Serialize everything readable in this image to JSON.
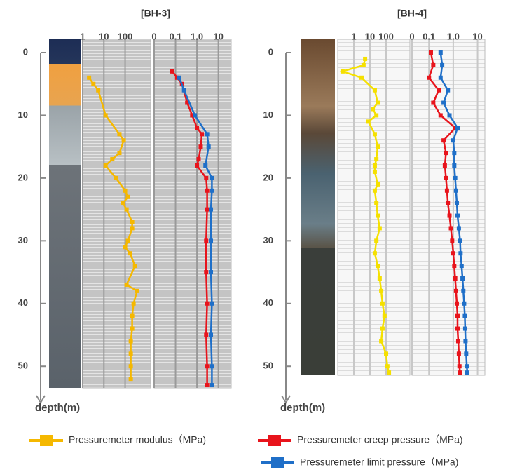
{
  "chart_data": [
    {
      "type": "line",
      "title": "[BH-3]",
      "y_label": "depth(m)",
      "ylim": [
        0,
        54
      ],
      "yticks": [
        0,
        10,
        20,
        30,
        40,
        50
      ],
      "yreverse": true,
      "xlim": [
        1,
        1600
      ],
      "xticks": [
        1,
        10,
        100
      ],
      "xlog": true,
      "x2lim": [
        0.01,
        40
      ],
      "x2ticks": [
        {
          "value": 0.01,
          "label": "0"
        },
        0.1,
        {
          "value": 1,
          "label": "1.0"
        },
        10
      ],
      "x2log": true,
      "grid": true,
      "series": [
        {
          "name": "Pressuremeter modulus（MPa)",
          "color": "#f5b800",
          "axis": "x",
          "depth": [
            4,
            5,
            6,
            10,
            13,
            14,
            16,
            17,
            18,
            20,
            22,
            23,
            24,
            25,
            27,
            28,
            30,
            31,
            32,
            34,
            37,
            38,
            40,
            42,
            44,
            46,
            48,
            50,
            52
          ],
          "values": [
            2,
            3.2,
            5.4,
            12,
            54,
            86,
            54,
            25,
            12,
            37,
            100,
            136,
            80,
            117,
            215,
            215,
            136,
            100,
            171,
            293,
            117,
            369,
            251,
            215,
            215,
            185,
            185,
            185,
            185
          ]
        },
        {
          "name": "Pressuremeter creep pressure（MPa)",
          "color": "#e8141c",
          "axis": "x2",
          "depth": [
            3,
            4,
            5,
            8,
            10,
            12,
            13,
            15,
            17,
            18,
            20,
            22,
            25,
            30,
            35,
            40,
            45,
            50,
            53
          ],
          "values": [
            0.07,
            0.12,
            0.2,
            0.35,
            0.6,
            1,
            1.7,
            1.5,
            1.2,
            1,
            2.7,
            3,
            3,
            2.7,
            2.7,
            3,
            2.7,
            3,
            3
          ]
        },
        {
          "name": "Pressuremeter limit pressure（MPa)",
          "color": "#1f6fc8",
          "axis": "x2",
          "depth": [
            4,
            6,
            10,
            13,
            15,
            18,
            20,
            22,
            25,
            30,
            35,
            40,
            45,
            50,
            53
          ],
          "values": [
            0.15,
            0.25,
            0.8,
            3,
            3.5,
            2.5,
            5,
            5,
            4.5,
            4.5,
            4.5,
            5,
            4.5,
            5,
            5
          ]
        }
      ]
    },
    {
      "type": "line",
      "title": "[BH-4]",
      "y_label": "depth(m)",
      "ylim": [
        0,
        54
      ],
      "yticks": [
        0,
        10,
        20,
        30,
        40,
        50
      ],
      "yreverse": true,
      "xlim": [
        0.1,
        3000
      ],
      "xticks": [
        1,
        10,
        100
      ],
      "xlog": true,
      "x2lim": [
        0.02,
        20
      ],
      "x2ticks": [
        {
          "value": 0.02,
          "label": "0"
        },
        0.1,
        {
          "value": 1,
          "label": "1.0"
        },
        10
      ],
      "x2log": true,
      "grid": true,
      "series": [
        {
          "name": "Pressuremeter modulus（MPa)",
          "color": "#f5e000",
          "axis": "x",
          "depth": [
            1,
            2,
            3,
            4,
            6,
            8,
            9,
            10,
            11,
            13,
            15,
            17,
            18,
            19,
            21,
            22,
            24,
            26,
            28,
            30,
            32,
            34,
            36,
            38,
            40,
            42,
            44,
            46,
            48,
            50,
            51
          ],
          "values": [
            5,
            4,
            0.2,
            3,
            20,
            30,
            15,
            25,
            8,
            20,
            30,
            25,
            20,
            20,
            30,
            20,
            25,
            30,
            40,
            25,
            20,
            30,
            40,
            50,
            60,
            80,
            60,
            50,
            100,
            120,
            150
          ]
        },
        {
          "name": "Pressuremeter creep pressure（MPa)",
          "color": "#e8141c",
          "axis": "x2",
          "depth": [
            0,
            2,
            4,
            6,
            8,
            10,
            12,
            14,
            16,
            18,
            20,
            22,
            24,
            26,
            28,
            30,
            32,
            34,
            36,
            38,
            40,
            42,
            44,
            46,
            48,
            50,
            51
          ],
          "values": [
            0.12,
            0.15,
            0.1,
            0.25,
            0.15,
            0.3,
            1.2,
            0.4,
            0.5,
            0.45,
            0.5,
            0.55,
            0.6,
            0.7,
            0.8,
            0.9,
            1,
            1.1,
            1.2,
            1.3,
            1.4,
            1.5,
            1.5,
            1.6,
            1.7,
            1.8,
            1.9
          ]
        },
        {
          "name": "Pressuremeter limit pressure（MPa)",
          "color": "#1f6fc8",
          "axis": "x2",
          "depth": [
            0,
            2,
            4,
            6,
            8,
            10,
            12,
            14,
            16,
            18,
            20,
            22,
            24,
            26,
            28,
            30,
            32,
            34,
            36,
            38,
            40,
            42,
            44,
            46,
            48,
            50,
            51
          ],
          "values": [
            0.3,
            0.35,
            0.3,
            0.6,
            0.4,
            0.7,
            1.5,
            1,
            1.1,
            1.1,
            1.2,
            1.3,
            1.4,
            1.5,
            1.7,
            1.9,
            2,
            2.2,
            2.4,
            2.6,
            2.8,
            3,
            3.1,
            3.2,
            3.4,
            3.6,
            3.8
          ]
        }
      ]
    }
  ]
}
